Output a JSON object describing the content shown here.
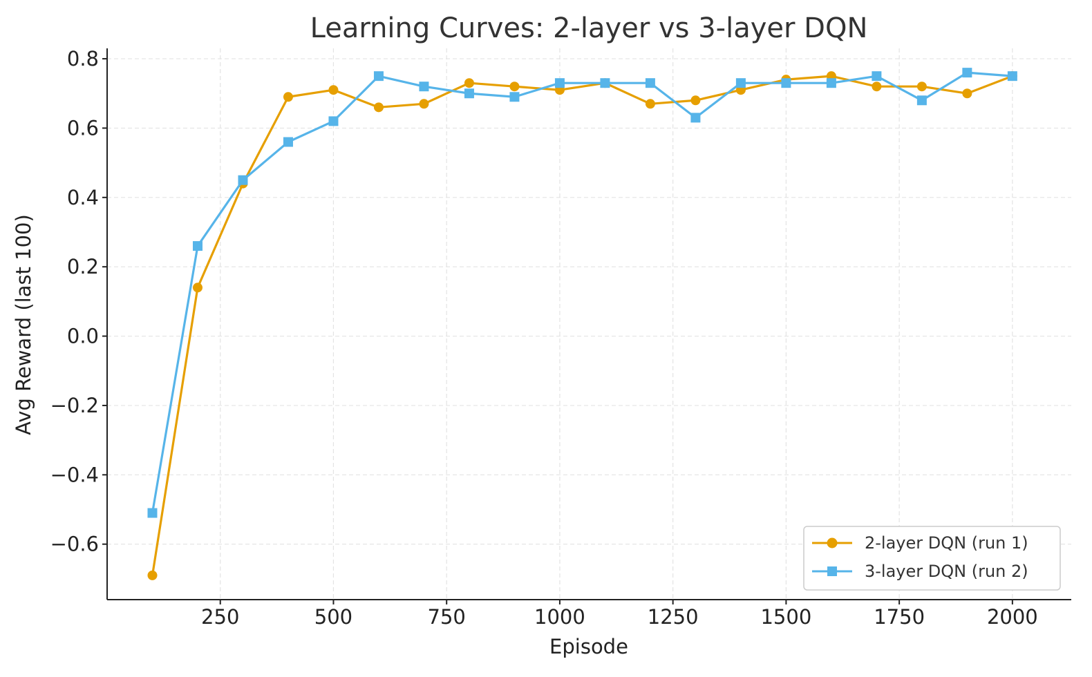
{
  "chart_data": {
    "type": "line",
    "title": "Learning Curves: 2-layer vs 3-layer DQN",
    "xlabel": "Episode",
    "ylabel": "Avg Reward (last 100)",
    "xlim": [
      0,
      2130
    ],
    "ylim": [
      -0.76,
      0.83
    ],
    "xticks": [
      250,
      500,
      750,
      1000,
      1250,
      1500,
      1750,
      2000
    ],
    "xtick_labels": [
      "250",
      "500",
      "750",
      "1000",
      "1250",
      "1500",
      "1750",
      "2000"
    ],
    "yticks": [
      -0.6,
      -0.4,
      -0.2,
      0.0,
      0.2,
      0.4,
      0.6,
      0.8
    ],
    "ytick_labels": [
      "−0.6",
      "−0.4",
      "−0.2",
      "0.0",
      "0.2",
      "0.4",
      "0.6",
      "0.8"
    ],
    "grid": true,
    "legend_position": "bottom-right",
    "x": [
      100,
      200,
      300,
      400,
      500,
      600,
      700,
      800,
      900,
      1000,
      1100,
      1200,
      1300,
      1400,
      1500,
      1600,
      1700,
      1800,
      1900,
      2000
    ],
    "series": [
      {
        "name": "2-layer DQN (run 1)",
        "color": "#E69F00",
        "marker": "circle",
        "values": [
          -0.69,
          0.14,
          0.44,
          0.69,
          0.71,
          0.66,
          0.67,
          0.73,
          0.72,
          0.71,
          0.73,
          0.67,
          0.68,
          0.71,
          0.74,
          0.75,
          0.72,
          0.72,
          0.7,
          0.75
        ]
      },
      {
        "name": "3-layer DQN (run 2)",
        "color": "#56B4E9",
        "marker": "square",
        "values": [
          -0.51,
          0.26,
          0.45,
          0.56,
          0.62,
          0.75,
          0.72,
          0.7,
          0.69,
          0.73,
          0.73,
          0.73,
          0.63,
          0.73,
          0.73,
          0.73,
          0.75,
          0.68,
          0.76,
          0.75
        ]
      }
    ]
  }
}
